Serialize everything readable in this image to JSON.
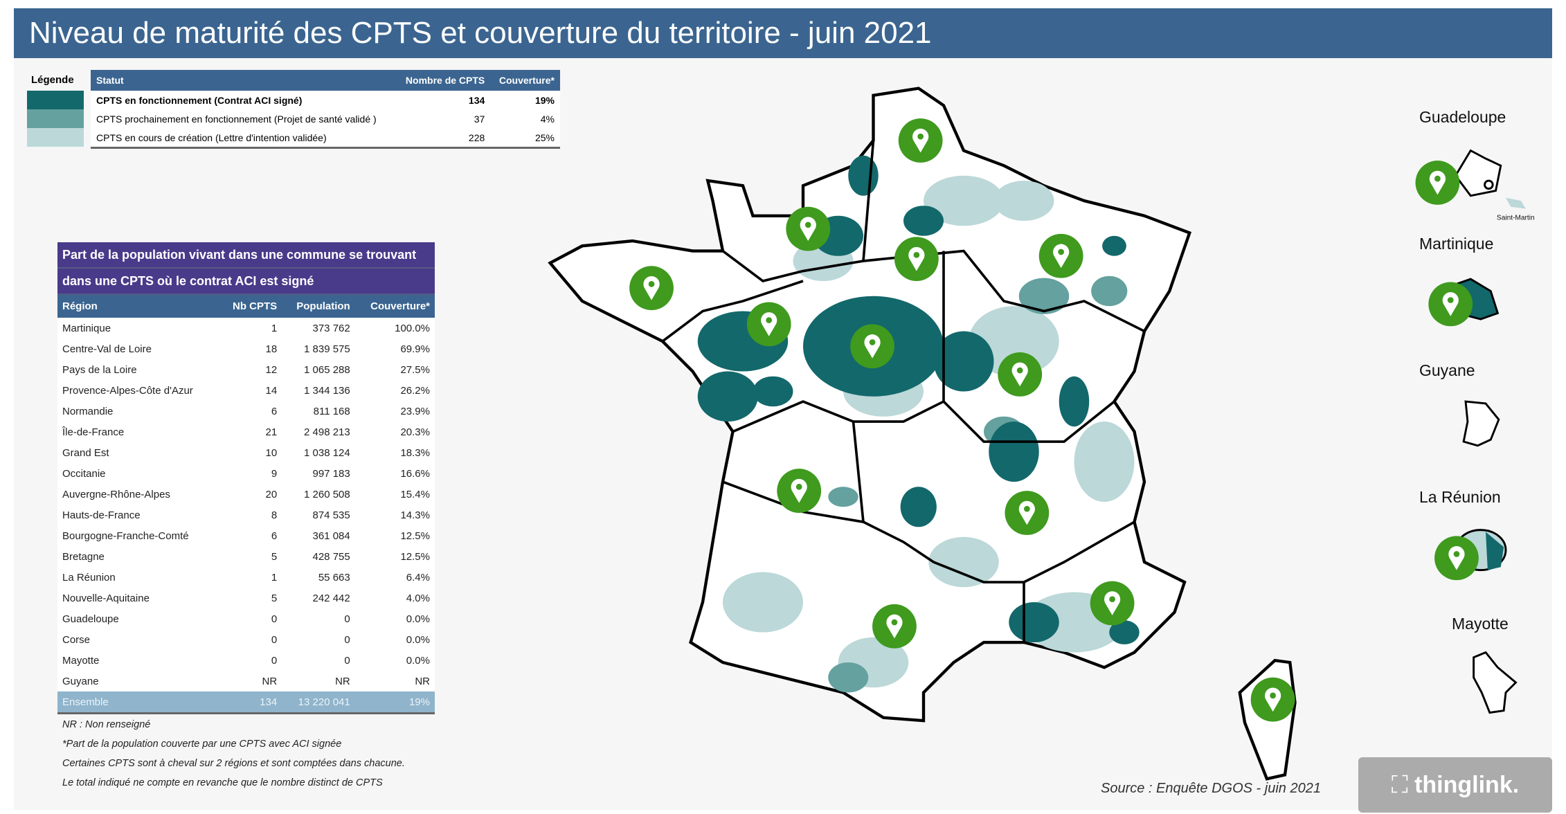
{
  "title": "Niveau de maturité des CPTS et couverture du territoire - juin 2021",
  "legend": {
    "label": "Légende",
    "headers": [
      "Statut",
      "Nombre de CPTS",
      "Couverture*"
    ],
    "rows": [
      {
        "statut": "CPTS en fonctionnement (Contrat ACI signé)",
        "nombre": "134",
        "couverture": "19%",
        "color": "#13686b"
      },
      {
        "statut": "CPTS prochainement en fonctionnement (Projet de santé validé )",
        "nombre": "37",
        "couverture": "4%",
        "color": "#64a19f"
      },
      {
        "statut": "CPTS en cours de création (Lettre d'intention validée)",
        "nombre": "228",
        "couverture": "25%",
        "color": "#bcd8d9"
      }
    ]
  },
  "region_table": {
    "title_line1": "Part de la population vivant dans une commune se trouvant",
    "title_line2": "dans une CPTS où le contrat ACI est signé",
    "headers": [
      "Région",
      "Nb CPTS",
      "Population",
      "Couverture*"
    ],
    "rows": [
      [
        "Martinique",
        "1",
        "373 762",
        "100.0%"
      ],
      [
        "Centre-Val de Loire",
        "18",
        "1 839 575",
        "69.9%"
      ],
      [
        "Pays de la Loire",
        "12",
        "1 065 288",
        "27.5%"
      ],
      [
        "Provence-Alpes-Côte d'Azur",
        "14",
        "1 344 136",
        "26.2%"
      ],
      [
        "Normandie",
        "6",
        "811 168",
        "23.9%"
      ],
      [
        "Île-de-France",
        "21",
        "2 498 213",
        "20.3%"
      ],
      [
        "Grand Est",
        "10",
        "1 038 124",
        "18.3%"
      ],
      [
        "Occitanie",
        "9",
        "997 183",
        "16.6%"
      ],
      [
        "Auvergne-Rhône-Alpes",
        "20",
        "1 260 508",
        "15.4%"
      ],
      [
        "Hauts-de-France",
        "8",
        "874 535",
        "14.3%"
      ],
      [
        "Bourgogne-Franche-Comté",
        "6",
        "361 084",
        "12.5%"
      ],
      [
        "Bretagne",
        "5",
        "428 755",
        "12.5%"
      ],
      [
        "La Réunion",
        "1",
        "55 663",
        "6.4%"
      ],
      [
        "Nouvelle-Aquitaine",
        "5",
        "242 442",
        "4.0%"
      ],
      [
        "Guadeloupe",
        "0",
        "0",
        "0.0%"
      ],
      [
        "Corse",
        "0",
        "0",
        "0.0%"
      ],
      [
        "Mayotte",
        "0",
        "0",
        "0.0%"
      ],
      [
        "Guyane",
        "NR",
        "NR",
        "NR"
      ]
    ],
    "total": [
      "Ensemble",
      "134",
      "13 220 041",
      "19%"
    ]
  },
  "notes": [
    "NR : Non renseigné",
    "*Part de la population couverte par une CPTS avec ACI signée",
    "Certaines CPTS sont à cheval sur 2 régions et sont comptées dans chacune.",
    "Le total indiqué ne compte en revanche que le nombre distinct de CPTS"
  ],
  "dom": {
    "guadeloupe": "Guadeloupe",
    "saint_martin": "Saint-Martin",
    "martinique": "Martinique",
    "guyane": "Guyane",
    "reunion": "La Réunion",
    "mayotte": "Mayotte"
  },
  "source": "Source : Enquête DGOS - juin 2021",
  "watermark": "thinglink.",
  "pin_color": "#3f9a1e"
}
